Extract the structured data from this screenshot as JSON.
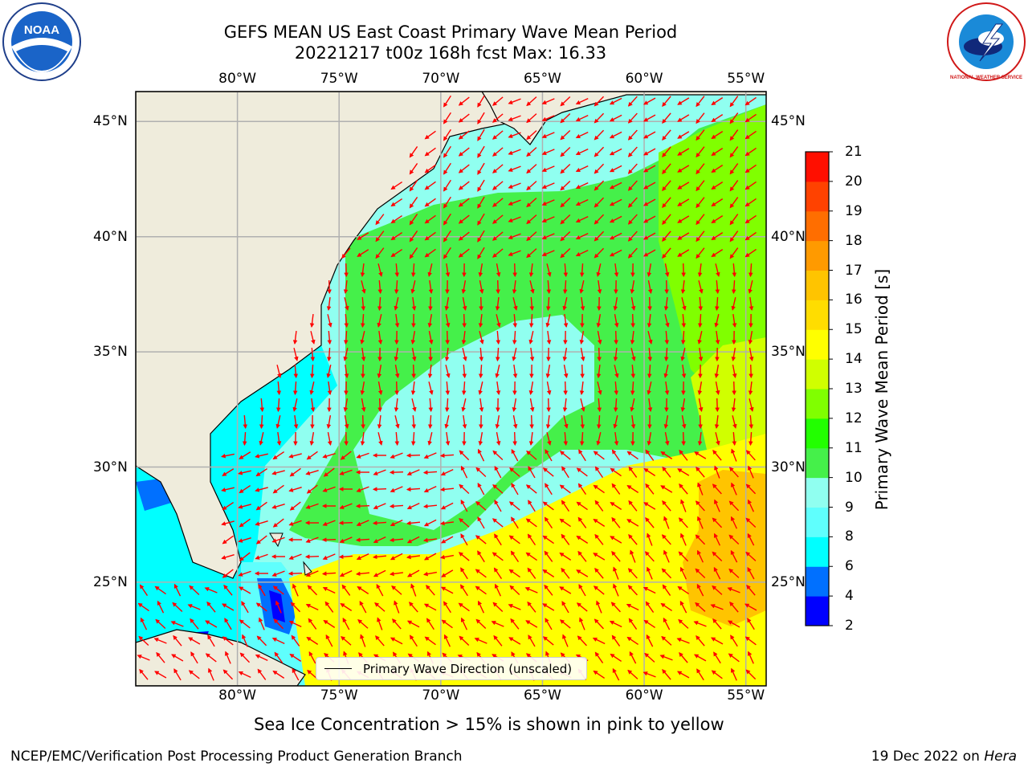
{
  "title": {
    "line1": "GEFS MEAN US East Coast Primary Wave Mean Period",
    "line2": "20221217 t00z 168h fcst   Max: 16.33"
  },
  "logos": {
    "left": {
      "icon": "noaa-logo",
      "text": "NOAA"
    },
    "right": {
      "icon": "nws-logo",
      "text": "NATIONAL WEATHER SERVICE"
    }
  },
  "map": {
    "lon_range": [
      -85,
      -54
    ],
    "lat_range": [
      20.5,
      46.3
    ],
    "lon_ticks": [
      -80,
      -75,
      -70,
      -65,
      -60,
      -55
    ],
    "lon_labels": [
      "80°W",
      "75°W",
      "70°W",
      "65°W",
      "60°W",
      "55°W"
    ],
    "lat_ticks": [
      25,
      30,
      35,
      40,
      45
    ],
    "lat_labels": [
      "25°N",
      "30°N",
      "35°N",
      "40°N",
      "45°N"
    ],
    "land_color": "#efecdc",
    "arrow_color": "#ff0000",
    "grid_color": "#b0b0b0"
  },
  "legend": {
    "label": "Primary Wave Direction (unscaled)"
  },
  "colorbar": {
    "label": "Primary Wave Mean Period [s]",
    "ticks": [
      2,
      4,
      6,
      8,
      9,
      10,
      11,
      12,
      13,
      14,
      15,
      16,
      17,
      18,
      19,
      20,
      21
    ],
    "colors": [
      "#0000ff",
      "#0070ff",
      "#00ffff",
      "#5ffffd",
      "#90fff0",
      "#45f04a",
      "#22ff00",
      "#80ff00",
      "#d0ff00",
      "#ffff00",
      "#ffdd00",
      "#ffc400",
      "#ff9a00",
      "#ff6e00",
      "#ff4200",
      "#ff0f00"
    ]
  },
  "subtitle": "Sea Ice Concentration > 15% is shown in pink to yellow",
  "footer": {
    "left": "NCEP/EMC/Verification Post Processing Product Generation Branch",
    "date": "19 Dec 2022 on",
    "host": "Hera"
  }
}
